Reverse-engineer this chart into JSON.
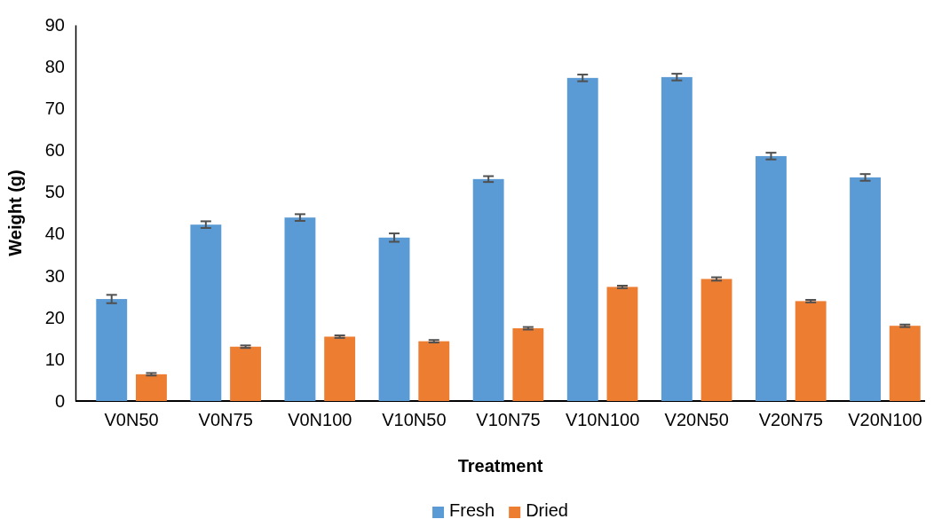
{
  "chart_data": {
    "type": "bar",
    "xlabel": "Treatment",
    "ylabel": "Weight (g)",
    "categories": [
      "V0N50",
      "V0N75",
      "V0N100",
      "V10N50",
      "V10N75",
      "V10N100",
      "V20N50",
      "V20N75",
      "V20N100"
    ],
    "series": [
      {
        "name": "Fresh",
        "color": "#5b9bd5",
        "values": [
          24.4,
          42.2,
          43.9,
          39.1,
          53.1,
          77.3,
          77.5,
          58.6,
          53.5
        ],
        "errors": [
          1,
          0.8,
          0.8,
          1,
          0.7,
          0.8,
          0.8,
          0.8,
          0.8
        ]
      },
      {
        "name": "Dried",
        "color": "#ed7d31",
        "values": [
          6.4,
          13.0,
          15.4,
          14.3,
          17.4,
          27.3,
          29.2,
          23.9,
          18.0
        ],
        "errors": [
          0.3,
          0.3,
          0.3,
          0.3,
          0.3,
          0.3,
          0.4,
          0.3,
          0.3
        ]
      }
    ],
    "ylim": [
      0,
      90
    ],
    "yticks": [
      0,
      10,
      20,
      30,
      40,
      50,
      60,
      70,
      80,
      90
    ],
    "grid": false,
    "legend": "bottom"
  }
}
